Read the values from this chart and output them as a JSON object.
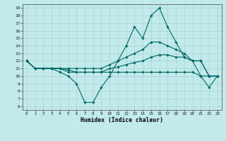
{
  "xlabel": "Humidex (Indice chaleur)",
  "xlim": [
    -0.5,
    23.5
  ],
  "ylim": [
    5.5,
    19.5
  ],
  "yticks": [
    6,
    7,
    8,
    9,
    10,
    11,
    12,
    13,
    14,
    15,
    16,
    17,
    18,
    19
  ],
  "xticks": [
    0,
    1,
    2,
    3,
    4,
    5,
    6,
    7,
    8,
    9,
    10,
    11,
    12,
    13,
    14,
    15,
    16,
    17,
    18,
    19,
    20,
    21,
    22,
    23
  ],
  "bg_color": "#c2eaea",
  "grid_color": "#a8d4d4",
  "line_color": "#006666",
  "curves": [
    [
      12,
      11,
      11,
      11,
      10.5,
      10,
      9,
      6.5,
      6.5,
      8.5,
      10,
      12,
      14,
      16.5,
      15,
      18,
      19,
      16.5,
      14.5,
      12.5,
      12,
      10,
      8.5,
      10
    ],
    [
      12,
      11,
      11,
      11,
      11,
      11,
      11,
      11,
      11,
      11,
      11.5,
      12,
      12.5,
      13,
      13.5,
      14.5,
      14.5,
      14,
      13.5,
      13,
      12,
      12,
      10,
      10
    ],
    [
      12,
      11,
      11,
      11,
      11,
      10.8,
      10.5,
      10.5,
      10.5,
      10.5,
      11,
      11.2,
      11.5,
      11.8,
      12,
      12.5,
      12.8,
      12.8,
      12.5,
      12.5,
      12,
      12,
      10,
      10
    ],
    [
      12,
      11,
      11,
      11,
      11,
      10.5,
      10.5,
      10.5,
      10.5,
      10.5,
      10.5,
      10.5,
      10.5,
      10.5,
      10.5,
      10.5,
      10.5,
      10.5,
      10.5,
      10.5,
      10.5,
      10,
      10,
      10
    ]
  ]
}
